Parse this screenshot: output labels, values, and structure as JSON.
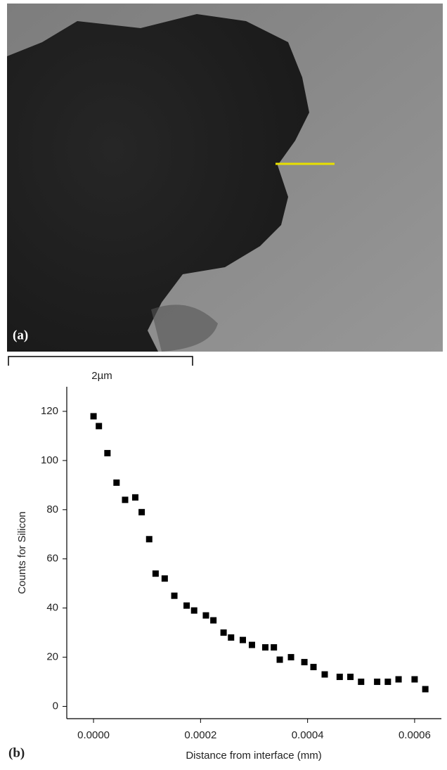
{
  "panel_a": {
    "label": "(a)",
    "scale_bar": "2µm"
  },
  "chart_data": {
    "type": "scatter",
    "panel_label": "(b)",
    "x_label": "Distance from interface (mm)",
    "y_label": "Counts for Silicon",
    "x": [
      0,
      1e-05,
      2.6e-05,
      4.3e-05,
      5.9e-05,
      7.8e-05,
      9e-05,
      0.000104,
      0.000116,
      0.000133,
      0.000151,
      0.000174,
      0.000188,
      0.00021,
      0.000224,
      0.000243,
      0.000257,
      0.000279,
      0.000296,
      0.000321,
      0.000337,
      0.000348,
      0.000369,
      0.000394,
      0.000411,
      0.000432,
      0.00046,
      0.00048,
      0.0005,
      0.00053,
      0.00055,
      0.00057,
      0.0006,
      0.00062
    ],
    "values": [
      118,
      114,
      103,
      91,
      84,
      85,
      79,
      68,
      54,
      52,
      45,
      41,
      39,
      37,
      35,
      30,
      28,
      27,
      25,
      24,
      24,
      19,
      20,
      18,
      16,
      13,
      12,
      12,
      10,
      10,
      10,
      11,
      11,
      7
    ],
    "color": "#000000",
    "xlim": [
      -5e-05,
      0.00065
    ],
    "ylim": [
      -5,
      130
    ],
    "xticks": [
      {
        "value": 0,
        "label": "0.0000"
      },
      {
        "value": 0.0002,
        "label": "0.0002"
      },
      {
        "value": 0.0004,
        "label": "0.0004"
      },
      {
        "value": 0.0006,
        "label": "0.0006"
      }
    ],
    "yticks": [
      0,
      20,
      40,
      60,
      80,
      100,
      120
    ]
  }
}
